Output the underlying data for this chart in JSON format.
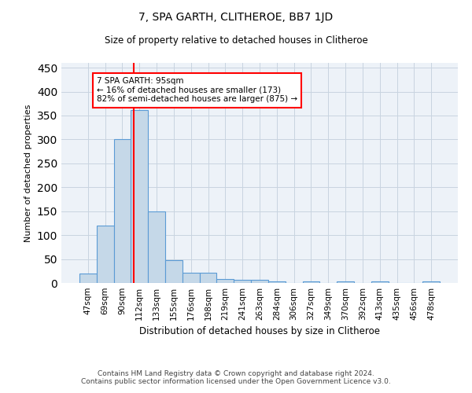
{
  "title": "7, SPA GARTH, CLITHEROE, BB7 1JD",
  "subtitle": "Size of property relative to detached houses in Clitheroe",
  "xlabel": "Distribution of detached houses by size in Clitheroe",
  "ylabel": "Number of detached properties",
  "footer1": "Contains HM Land Registry data © Crown copyright and database right 2024.",
  "footer2": "Contains public sector information licensed under the Open Government Licence v3.0.",
  "bar_labels": [
    "47sqm",
    "69sqm",
    "90sqm",
    "112sqm",
    "133sqm",
    "155sqm",
    "176sqm",
    "198sqm",
    "219sqm",
    "241sqm",
    "263sqm",
    "284sqm",
    "306sqm",
    "327sqm",
    "349sqm",
    "370sqm",
    "392sqm",
    "413sqm",
    "435sqm",
    "456sqm",
    "478sqm"
  ],
  "bar_values": [
    20,
    120,
    300,
    362,
    150,
    47,
    22,
    22,
    8,
    6,
    6,
    4,
    0,
    3,
    0,
    3,
    0,
    4,
    0,
    0,
    4
  ],
  "bar_color": "#c5d8e8",
  "bar_edge_color": "#5b9bd5",
  "grid_color": "#c8d4e0",
  "bg_color": "#edf2f8",
  "red_line_x": 2.65,
  "annotation_line1": "7 SPA GARTH: 95sqm",
  "annotation_line2": "← 16% of detached houses are smaller (173)",
  "annotation_line3": "82% of semi-detached houses are larger (875) →",
  "annotation_box_color": "white",
  "annotation_box_edge": "red",
  "ylim": [
    0,
    460
  ],
  "yticks": [
    0,
    50,
    100,
    150,
    200,
    250,
    300,
    350,
    400,
    450
  ]
}
